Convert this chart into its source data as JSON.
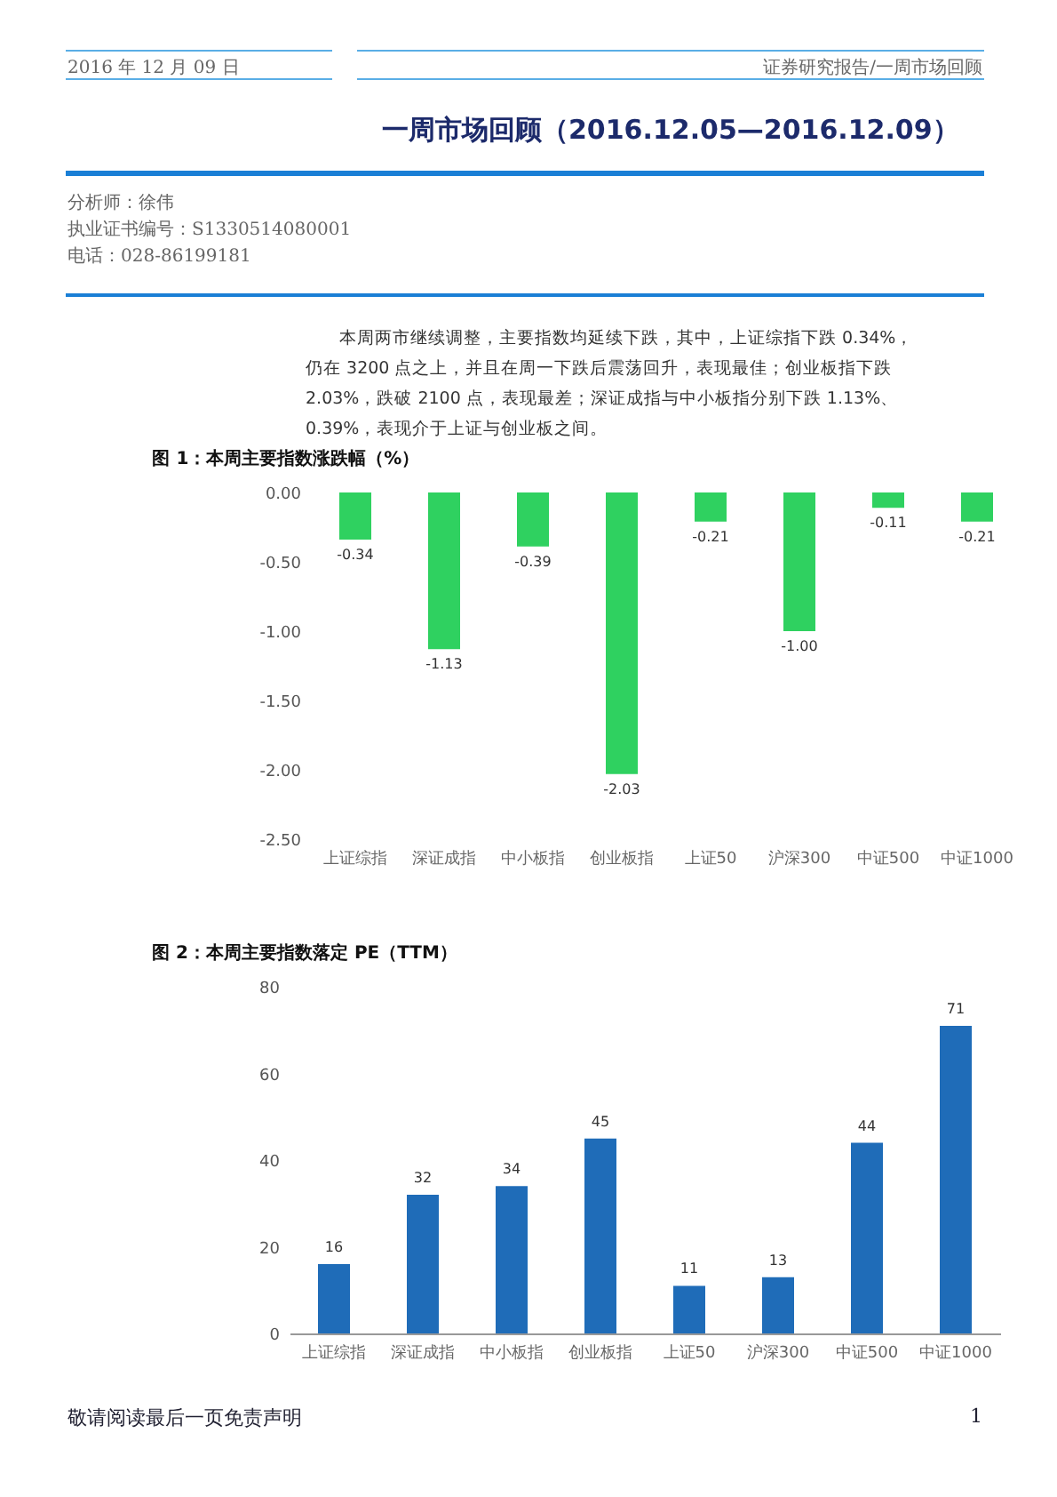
{
  "chart_data": [
    {
      "type": "bar",
      "title": "图 1：本周主要指数涨跌幅（%）",
      "categories": [
        "上证综指",
        "深证成指",
        "中小板指",
        "创业板指",
        "上证50",
        "沪深300",
        "中证500",
        "中证1000"
      ],
      "values": [
        -0.34,
        -1.13,
        -0.39,
        -2.03,
        -0.21,
        -1.0,
        -0.11,
        -0.21
      ],
      "value_labels": [
        "-0.34",
        "-1.13",
        "-0.39",
        "-2.03",
        "-0.21",
        "-1.00",
        "-0.11",
        "-0.21"
      ],
      "color": "#2fd160",
      "ylim": [
        -2.5,
        0
      ],
      "yticks": [
        {
          "value": 0,
          "label": "0.00"
        },
        {
          "value": -0.5,
          "label": "-0.50"
        },
        {
          "value": -1,
          "label": "-1.00"
        },
        {
          "value": -1.5,
          "label": "-1.50"
        },
        {
          "value": -2,
          "label": "-2.00"
        },
        {
          "value": -2.5,
          "label": "-2.50"
        }
      ],
      "grid": false,
      "annotations": [
        "2016 年 12 月 09 日",
        "证券研究报告/一周市场回顾",
        "一周市场回顾（2016.12.05—2016.12.09）",
        "分析师：徐伟",
        "执业证书编号：S1330514080001",
        "电话：028-86199181",
        "本周两市继续调整，主要指数均延续下跌，其中，上证综指下跌 0.34%，仍在 3200 点之上，并且在周一下跌后震荡回升，表现最佳；创业板指下跌 2.03%，跌破 2100 点，表现最差；深证成指与中小板指分别下跌 1.13%、0.39%，表现介于上证与创业板之间。"
      ]
    },
    {
      "type": "bar",
      "title": "图 2：本周主要指数落定 PE（TTM）",
      "categories": [
        "上证综指",
        "深证成指",
        "中小板指",
        "创业板指",
        "上证50",
        "沪深300",
        "中证500",
        "中证1000"
      ],
      "values": [
        16,
        32,
        34,
        45,
        11,
        13,
        44,
        71
      ],
      "data_labels": true,
      "color": "#1f6cb8",
      "ylim": [
        0,
        80
      ],
      "yticks": [
        0,
        20,
        40,
        60,
        80
      ],
      "grid": false,
      "annotations": [
        "敬请阅读最后一页免责声明",
        "1"
      ]
    }
  ]
}
